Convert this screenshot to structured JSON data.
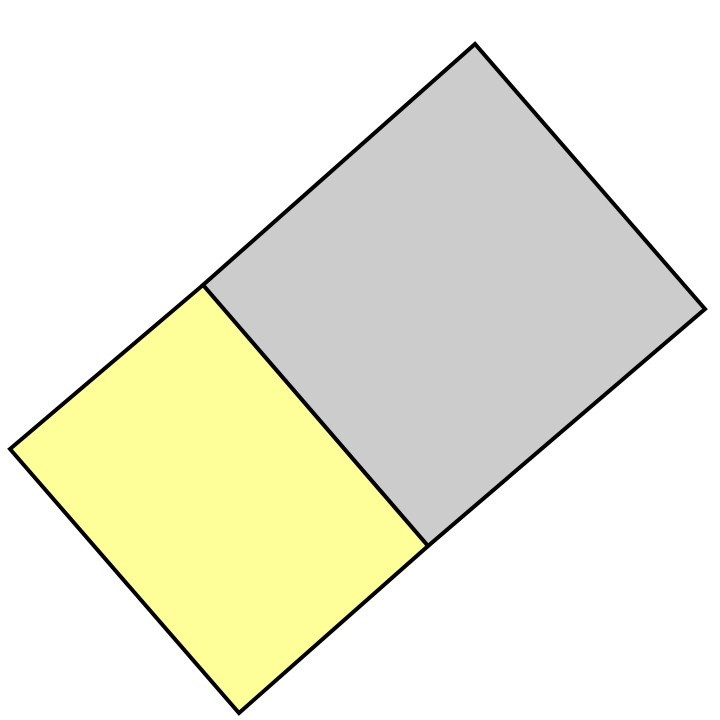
{
  "diagram": {
    "shapes": [
      {
        "name": "gray-square",
        "fill": "#cccccc",
        "stroke": "#000000"
      },
      {
        "name": "yellow-rectangle",
        "fill": "#ffff99",
        "stroke": "#000000"
      }
    ]
  }
}
